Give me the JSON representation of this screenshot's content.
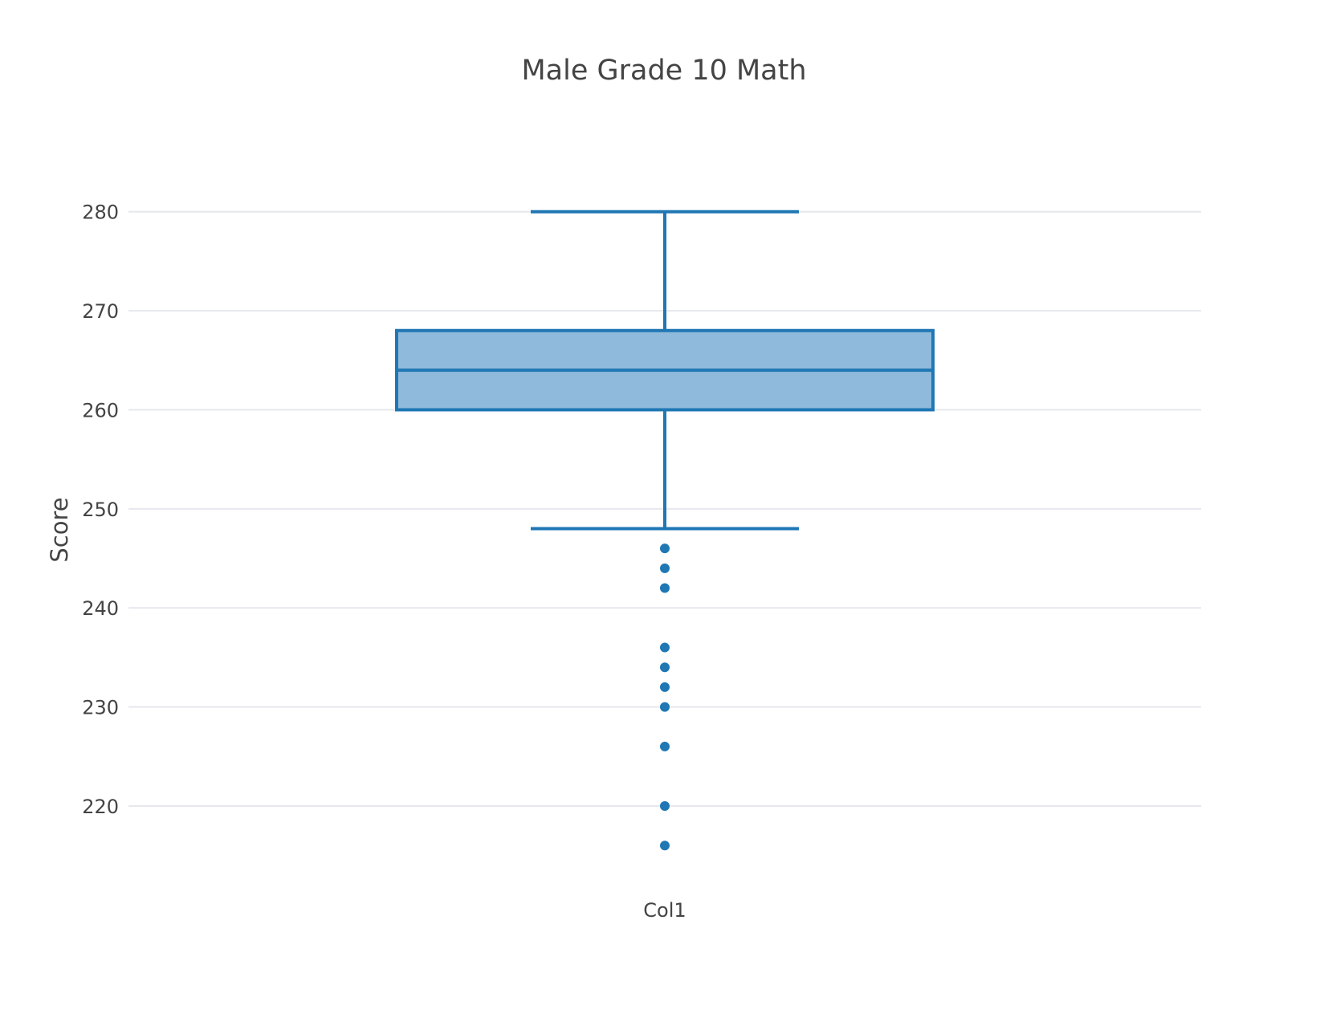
{
  "chart_data": {
    "type": "box",
    "title": "Male Grade 10 Math",
    "xlabel": "",
    "ylabel": "Score",
    "categories": [
      "Col1"
    ],
    "ylim": [
      211,
      288
    ],
    "yticks": [
      220,
      230,
      240,
      250,
      260,
      270,
      280
    ],
    "grid": true,
    "legend": "none",
    "series": [
      {
        "category": "Col1",
        "lower_whisker": 248,
        "q1": 260,
        "median": 264,
        "q3": 268,
        "upper_whisker": 280,
        "outliers": [
          246,
          244,
          242,
          236,
          234,
          232,
          230,
          226,
          220,
          216
        ]
      }
    ],
    "colors": {
      "line": "#1f77b4",
      "fill": "#8fbadb",
      "grid": "#e6e8ee",
      "text": "#444444"
    }
  }
}
